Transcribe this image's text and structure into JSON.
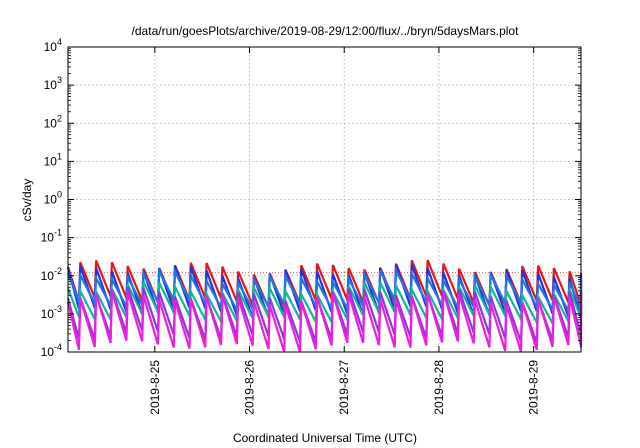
{
  "chart_data": {
    "type": "line",
    "title": "/data/run/goesPlots/archive/2019-08-29/12:00/flux/../bryn/5daysMars.plot",
    "xlabel": "Coordinated Universal Time (UTC)",
    "ylabel": "cSv/day",
    "yscale": "log",
    "ylim": [
      0.0001,
      10000
    ],
    "xlim": [
      "2019-08-24 02:00",
      "2019-08-29 12:00"
    ],
    "x_ticks": [
      "2019-8-25",
      "2019-8-26",
      "2019-8-27",
      "2019-8-28",
      "2019-8-29"
    ],
    "y_ticks": [
      {
        "base": "10",
        "exp": "-4"
      },
      {
        "base": "10",
        "exp": "-3"
      },
      {
        "base": "10",
        "exp": "-2"
      },
      {
        "base": "10",
        "exp": "-1"
      },
      {
        "base": "10",
        "exp": "0"
      },
      {
        "base": "10",
        "exp": "1"
      },
      {
        "base": "10",
        "exp": "2"
      },
      {
        "base": "10",
        "exp": "3"
      },
      {
        "base": "10",
        "exp": "4"
      }
    ],
    "grid": true,
    "sawtooth_period_hours": 4,
    "series": [
      {
        "color": "#e8141c",
        "peak": 0.017,
        "trough": 0.0021
      },
      {
        "color": "#2a33d6",
        "peak": 0.013,
        "trough": 0.0011
      },
      {
        "color": "#1a78e6",
        "peak": 0.009,
        "trough": 0.0017
      },
      {
        "color": "#14b4a0",
        "peak": 0.0045,
        "trough": 0.0008
      },
      {
        "color": "#8a3ad8",
        "peak": 0.0032,
        "trough": 0.00025
      },
      {
        "color": "#ee1ee0",
        "peak": 0.0026,
        "trough": 0.00014
      }
    ],
    "reference_line": {
      "color": "#e8141c",
      "value": 0.012
    }
  }
}
